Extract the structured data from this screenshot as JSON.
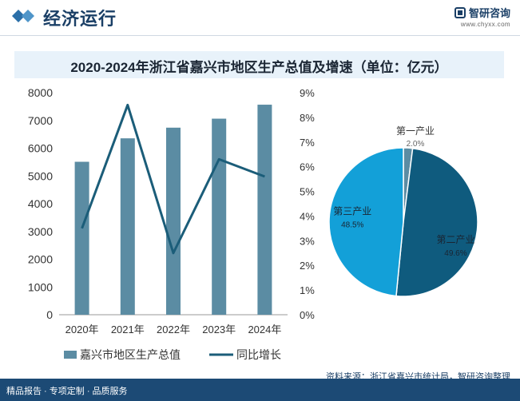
{
  "header": {
    "title": "经济运行",
    "logo_name": "智研咨询",
    "logo_url": "www.chyxx.com"
  },
  "chart_data": {
    "type": "bar",
    "title": "2020-2024年浙江省嘉兴市地区生产总值及增速（单位：亿元）",
    "categories": [
      "2020年",
      "2021年",
      "2022年",
      "2023年",
      "2024年"
    ],
    "series": [
      {
        "name": "嘉兴市地区生产总值",
        "type": "bar",
        "axis": "left",
        "color": "#5b8ca3",
        "values": [
          5510,
          6355,
          6739,
          7063,
          7567
        ]
      },
      {
        "name": "同比增长",
        "type": "line",
        "axis": "right",
        "color": "#1b5d79",
        "values": [
          3.5,
          8.5,
          2.5,
          6.3,
          5.6
        ]
      }
    ],
    "left_axis": {
      "ylim": [
        0,
        8000
      ],
      "ticks": [
        "0",
        "1000",
        "2000",
        "3000",
        "4000",
        "5000",
        "6000",
        "7000",
        "8000"
      ]
    },
    "right_axis": {
      "ylim": [
        0,
        9
      ],
      "ticks": [
        "0%",
        "1%",
        "2%",
        "3%",
        "4%",
        "5%",
        "6%",
        "7%",
        "8%",
        "9%"
      ]
    },
    "legend_position": "bottom",
    "grid": false,
    "pie": {
      "type": "pie",
      "slices": [
        {
          "label": "第一产业",
          "value": 2.0,
          "value_label": "2.0%",
          "color": "#5b8ca3"
        },
        {
          "label": "第二产业",
          "value": 49.6,
          "value_label": "49.6%",
          "color": "#0f5b7e"
        },
        {
          "label": "第三产业",
          "value": 48.5,
          "value_label": "48.5%",
          "color": "#13a0d8"
        }
      ]
    }
  },
  "footer": {
    "tagline": "精品报告 · 专项定制 · 品质服务",
    "source": "资料来源：浙江省嘉兴市统计局，智研咨询整理"
  }
}
